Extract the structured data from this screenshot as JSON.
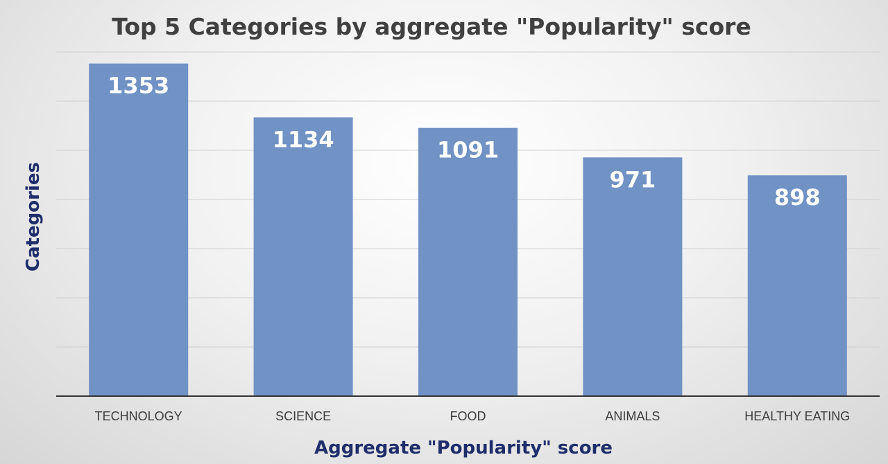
{
  "chart_data": {
    "type": "bar",
    "title": "Top 5 Categories by aggregate \"Popularity\" score",
    "xlabel": "Aggregate \"Popularity\" score",
    "ylabel": "Categories",
    "categories": [
      "TECHNOLOGY",
      "SCIENCE",
      "FOOD",
      "ANIMALS",
      "HEALTHY EATING"
    ],
    "values": [
      1353,
      1134,
      1091,
      971,
      898
    ],
    "ylim": [
      0,
      1400
    ],
    "grid": true,
    "legend": "none",
    "data_labels": true
  },
  "colors": {
    "bar": "#7092c4",
    "bar_label": "#ffffff",
    "title": "#404040",
    "axis_title": "#1f2d6b",
    "tick_label": "#3a3a3a",
    "grid": "#cfcfcf",
    "axis_line": "#333333"
  }
}
